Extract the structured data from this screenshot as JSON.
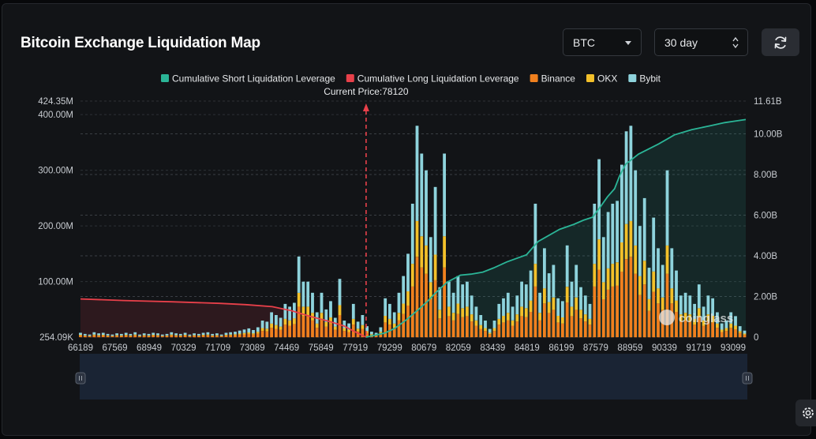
{
  "header": {
    "title": "Bitcoin Exchange Liquidation Map",
    "coin_select": {
      "value": "BTC"
    },
    "period_select": {
      "value": "30 day"
    }
  },
  "icons": {
    "refresh": "refresh-icon",
    "settings": "gear-icon",
    "watermark": "coinglass-logo"
  },
  "watermark": "coinglass",
  "colors": {
    "short": "#2bb597",
    "long": "#e8404a",
    "binance": "#f0801e",
    "okx": "#f3c02a",
    "bybit": "#8ed3dc",
    "background": "#121417"
  },
  "chart_data": {
    "type": "bar",
    "title": "",
    "current_price_label": "Current Price:78120",
    "current_price": 78120,
    "legend": [
      "Cumulative Short Liquidation Leverage",
      "Cumulative Long Liquidation Leverage",
      "Binance",
      "OKX",
      "Bybit"
    ],
    "legend_position": "top-center",
    "x_tick_labels": [
      "66189",
      "67569",
      "68949",
      "70329",
      "71709",
      "73089",
      "74469",
      "75849",
      "77919",
      "79299",
      "80679",
      "82059",
      "83439",
      "84819",
      "86199",
      "87579",
      "88959",
      "90339",
      "91719",
      "93099"
    ],
    "xlim": [
      66189,
      93980
    ],
    "y_left": {
      "tick_labels": [
        "254.09K",
        "100.00M",
        "200.00M",
        "300.00M",
        "400.00M",
        "424.35M"
      ],
      "min": 0.25409,
      "max": 424.35,
      "unit": "M"
    },
    "y_right": {
      "tick_labels": [
        "0",
        "2.00B",
        "4.00B",
        "6.00B",
        "8.00B",
        "10.00B",
        "11.61B"
      ],
      "min": 0,
      "max": 11.61,
      "unit": "B"
    },
    "grid": true,
    "cumulative_long": {
      "name": "Cumulative Long Liquidation Leverage",
      "x": [
        66189,
        68000,
        70000,
        72000,
        73089,
        74200,
        75000,
        75849,
        76500,
        77200,
        77600,
        77919,
        78120
      ],
      "y": [
        1.88,
        1.8,
        1.74,
        1.66,
        1.6,
        1.5,
        1.3,
        1.0,
        0.8,
        0.55,
        0.3,
        0.12,
        0.0
      ]
    },
    "cumulative_short": {
      "name": "Cumulative Short Liquidation Leverage",
      "x": [
        78120,
        78900,
        79299,
        79800,
        80300,
        80679,
        81000,
        81500,
        82059,
        82500,
        83000,
        83439,
        84000,
        84819,
        85300,
        86199,
        86800,
        87200,
        87579,
        87900,
        88200,
        88500,
        88700,
        88959,
        89500,
        90339,
        91000,
        91719,
        92500,
        93099,
        93500,
        93980
      ],
      "y": [
        0.0,
        0.2,
        0.42,
        0.85,
        1.35,
        1.75,
        2.15,
        2.7,
        3.05,
        3.1,
        3.2,
        3.4,
        3.7,
        4.05,
        4.7,
        5.3,
        5.55,
        5.75,
        5.9,
        6.4,
        6.9,
        7.3,
        7.9,
        8.5,
        9.0,
        9.5,
        9.95,
        10.2,
        10.4,
        10.55,
        10.62,
        10.7
      ]
    },
    "exchange_bars": {
      "binance_share": 0.38,
      "okx_share": 0.17,
      "bybit_share": 0.45,
      "x": [
        66189,
        66380,
        66570,
        66760,
        66950,
        67140,
        67330,
        67520,
        67710,
        67900,
        68090,
        68280,
        68470,
        68660,
        68850,
        69040,
        69230,
        69420,
        69610,
        69800,
        69990,
        70180,
        70370,
        70560,
        70750,
        70940,
        71130,
        71320,
        71510,
        71700,
        71890,
        72080,
        72270,
        72460,
        72650,
        72840,
        73030,
        73220,
        73410,
        73600,
        73790,
        73980,
        74170,
        74360,
        74550,
        74740,
        74930,
        75120,
        75310,
        75500,
        75690,
        75880,
        76070,
        76260,
        76450,
        76640,
        76830,
        77020,
        77210,
        77400,
        77590,
        77780,
        77970,
        78160,
        78350,
        78540,
        78730,
        78920,
        79110,
        79300,
        79490,
        79680,
        79870,
        80060,
        80250,
        80440,
        80630,
        80820,
        81010,
        81200,
        81390,
        81580,
        81770,
        81960,
        82150,
        82340,
        82530,
        82720,
        82910,
        83100,
        83290,
        83480,
        83670,
        83860,
        84050,
        84240,
        84430,
        84620,
        84810,
        85000,
        85190,
        85380,
        85570,
        85760,
        85950,
        86140,
        86330,
        86520,
        86710,
        86900,
        87090,
        87280,
        87470,
        87660,
        87850,
        88040,
        88230,
        88420,
        88610,
        88800,
        88990,
        89180,
        89370,
        89560,
        89750,
        89940,
        90130,
        90320,
        90510,
        90700,
        90890,
        91080,
        91270,
        91460,
        91650,
        91840,
        92030,
        92220,
        92410,
        92600,
        92790,
        92980,
        93170,
        93360,
        93550,
        93740,
        93930
      ],
      "totals": [
        8,
        6,
        5,
        9,
        7,
        8,
        6,
        5,
        7,
        6,
        8,
        6,
        9,
        5,
        7,
        6,
        8,
        7,
        5,
        6,
        9,
        7,
        6,
        8,
        5,
        7,
        6,
        8,
        9,
        6,
        7,
        5,
        8,
        9,
        10,
        12,
        14,
        16,
        13,
        18,
        30,
        28,
        45,
        40,
        35,
        60,
        55,
        62,
        145,
        100,
        100,
        80,
        45,
        80,
        50,
        65,
        35,
        105,
        30,
        25,
        60,
        28,
        40,
        20,
        10,
        8,
        18,
        70,
        60,
        45,
        80,
        110,
        150,
        240,
        380,
        330,
        300,
        180,
        270,
        90,
        330,
        100,
        80,
        110,
        95,
        100,
        75,
        55,
        40,
        30,
        15,
        30,
        60,
        70,
        80,
        55,
        75,
        100,
        95,
        120,
        240,
        80,
        160,
        115,
        130,
        70,
        65,
        165,
        100,
        130,
        90,
        75,
        60,
        240,
        320,
        180,
        225,
        240,
        245,
        310,
        370,
        380,
        300,
        200,
        250,
        125,
        215,
        160,
        130,
        300,
        160,
        120,
        75,
        80,
        75,
        60,
        95,
        55,
        75,
        70,
        45,
        25,
        30,
        45,
        38,
        20,
        12,
        10,
        15,
        18,
        12
      ]
    }
  }
}
